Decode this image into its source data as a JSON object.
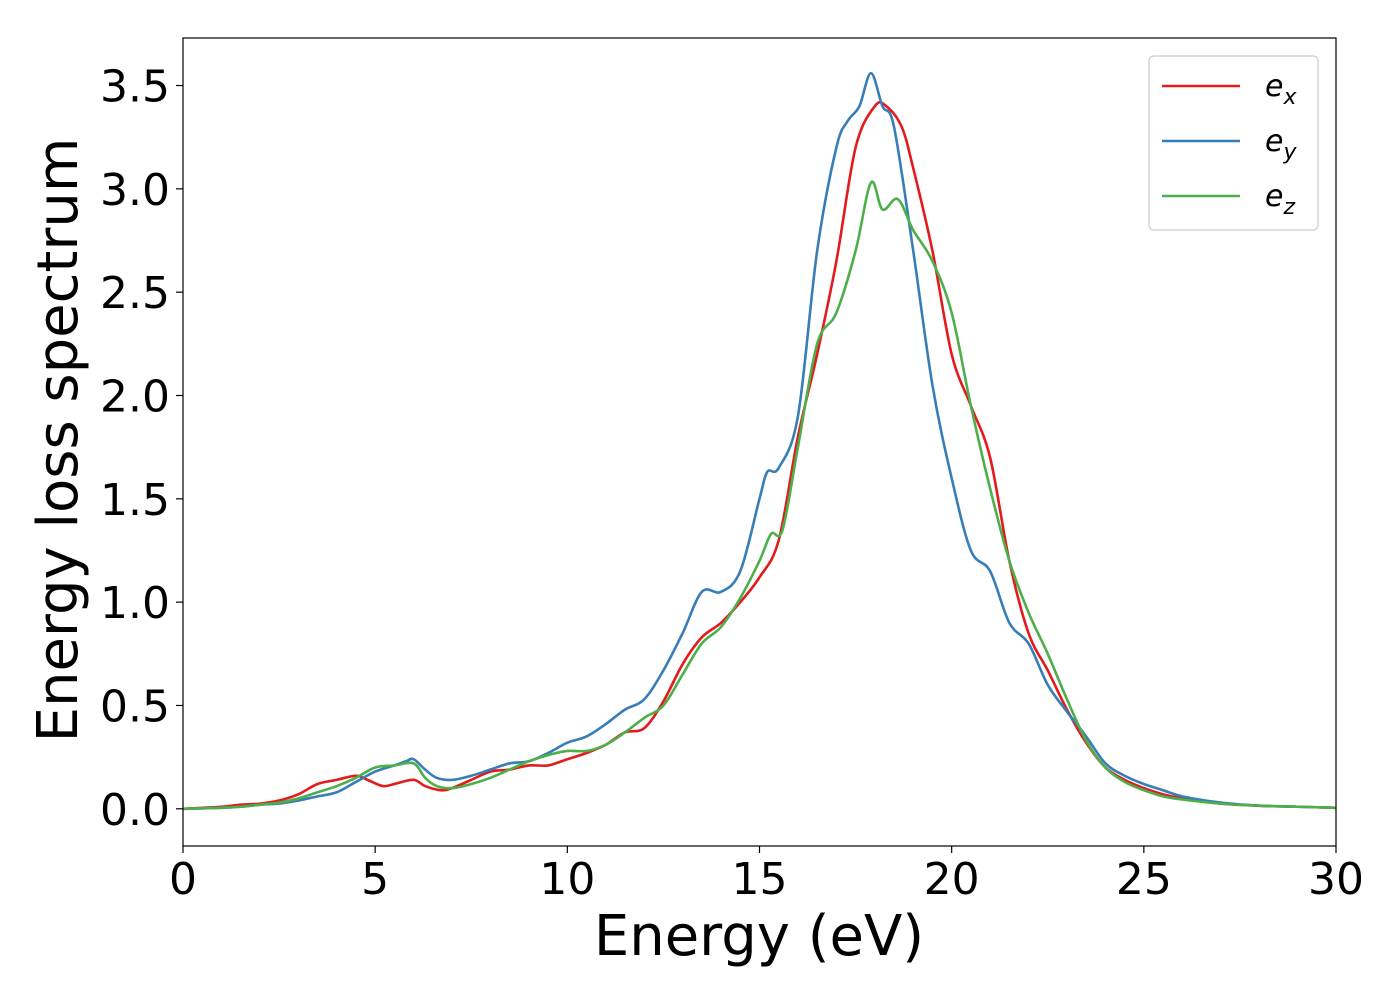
{
  "chart_data": {
    "type": "line",
    "title": "",
    "xlabel": "Energy (eV)",
    "ylabel": "Energy loss spectrum",
    "xlim": [
      0,
      30
    ],
    "ylim": [
      -0.18,
      3.73
    ],
    "x_ticks": [
      0,
      5,
      10,
      15,
      20,
      25,
      30
    ],
    "x_tick_labels": [
      "0",
      "5",
      "10",
      "15",
      "20",
      "25",
      "30"
    ],
    "y_ticks": [
      0.0,
      0.5,
      1.0,
      1.5,
      2.0,
      2.5,
      3.0,
      3.5
    ],
    "y_tick_labels": [
      "0.0",
      "0.5",
      "1.0",
      "1.5",
      "2.0",
      "2.5",
      "3.0",
      "3.5"
    ],
    "grid": false,
    "legend_position": "top-right",
    "series": [
      {
        "name": "e_x",
        "legend_base": "e",
        "legend_sub": "x",
        "color": "#e41a1c",
        "x": [
          0,
          1,
          1.5,
          2,
          2.5,
          3,
          3.5,
          4,
          4.5,
          4.8,
          5.2,
          5.5,
          6,
          6.3,
          6.7,
          7,
          7.5,
          8,
          8.5,
          9,
          9.5,
          10,
          10.5,
          11,
          11.5,
          12,
          12.5,
          13,
          13.5,
          14,
          14.5,
          15,
          15.5,
          16,
          16.5,
          17,
          17.5,
          18,
          18.3,
          18.7,
          19,
          19.5,
          20,
          20.5,
          21,
          21.5,
          22,
          22.5,
          23,
          23.5,
          24,
          24.5,
          25,
          25.5,
          26,
          27,
          28,
          29,
          30
        ],
        "y": [
          0.0,
          0.01,
          0.02,
          0.025,
          0.04,
          0.07,
          0.12,
          0.14,
          0.16,
          0.14,
          0.11,
          0.12,
          0.14,
          0.11,
          0.09,
          0.1,
          0.14,
          0.18,
          0.19,
          0.21,
          0.21,
          0.24,
          0.27,
          0.31,
          0.37,
          0.39,
          0.52,
          0.7,
          0.83,
          0.9,
          1.0,
          1.12,
          1.3,
          1.8,
          2.2,
          2.65,
          3.2,
          3.4,
          3.4,
          3.3,
          3.1,
          2.7,
          2.2,
          1.95,
          1.7,
          1.2,
          0.85,
          0.67,
          0.48,
          0.32,
          0.2,
          0.14,
          0.1,
          0.07,
          0.05,
          0.025,
          0.015,
          0.01,
          0.005
        ]
      },
      {
        "name": "e_y",
        "legend_base": "e",
        "legend_sub": "y",
        "color": "#377eb8",
        "x": [
          0,
          1,
          1.5,
          2,
          2.5,
          3,
          3.5,
          4,
          4.5,
          5,
          5.5,
          5.8,
          6,
          6.3,
          6.6,
          7,
          7.5,
          8,
          8.5,
          9,
          9.5,
          10,
          10.5,
          11,
          11.5,
          12,
          12.5,
          13,
          13.5,
          14,
          14.5,
          15,
          15.2,
          15.5,
          16,
          16.5,
          17,
          17.3,
          17.6,
          17.9,
          18.2,
          18.5,
          19,
          19.5,
          20,
          20.5,
          21,
          21.5,
          22,
          22.5,
          23,
          23.5,
          24,
          24.5,
          25,
          25.5,
          26,
          27,
          28,
          29,
          30
        ],
        "y": [
          0.0,
          0.005,
          0.01,
          0.02,
          0.025,
          0.04,
          0.06,
          0.08,
          0.13,
          0.18,
          0.21,
          0.23,
          0.24,
          0.19,
          0.15,
          0.14,
          0.16,
          0.19,
          0.22,
          0.23,
          0.27,
          0.32,
          0.35,
          0.41,
          0.48,
          0.53,
          0.67,
          0.85,
          1.05,
          1.05,
          1.15,
          1.5,
          1.63,
          1.65,
          1.9,
          2.7,
          3.2,
          3.33,
          3.4,
          3.56,
          3.4,
          3.3,
          2.7,
          2.05,
          1.6,
          1.25,
          1.15,
          0.9,
          0.8,
          0.6,
          0.47,
          0.35,
          0.22,
          0.16,
          0.12,
          0.09,
          0.06,
          0.03,
          0.015,
          0.01,
          0.005
        ]
      },
      {
        "name": "e_z",
        "legend_base": "e",
        "legend_sub": "z",
        "color": "#4daf4a",
        "x": [
          0,
          1,
          1.5,
          2,
          2.5,
          3,
          3.5,
          4,
          4.5,
          5,
          5.5,
          6,
          6.3,
          6.6,
          7,
          7.5,
          8,
          8.5,
          9,
          9.5,
          10,
          10.5,
          11,
          11.5,
          12,
          12.5,
          13,
          13.5,
          14,
          14.5,
          15,
          15.3,
          15.6,
          16,
          16.5,
          17,
          17.5,
          17.9,
          18.2,
          18.6,
          19,
          19.5,
          20,
          20.5,
          21,
          21.5,
          22,
          22.5,
          23,
          23.5,
          24,
          24.5,
          25,
          25.5,
          26,
          27,
          28,
          29,
          30
        ],
        "y": [
          0.0,
          0.005,
          0.01,
          0.02,
          0.03,
          0.05,
          0.08,
          0.11,
          0.15,
          0.2,
          0.21,
          0.22,
          0.15,
          0.11,
          0.1,
          0.12,
          0.15,
          0.19,
          0.23,
          0.26,
          0.28,
          0.28,
          0.31,
          0.37,
          0.44,
          0.5,
          0.65,
          0.8,
          0.88,
          1.02,
          1.2,
          1.33,
          1.35,
          1.75,
          2.25,
          2.4,
          2.7,
          3.03,
          2.9,
          2.95,
          2.8,
          2.65,
          2.4,
          1.95,
          1.55,
          1.2,
          0.95,
          0.75,
          0.53,
          0.33,
          0.2,
          0.13,
          0.09,
          0.06,
          0.045,
          0.025,
          0.015,
          0.01,
          0.005
        ]
      }
    ]
  }
}
